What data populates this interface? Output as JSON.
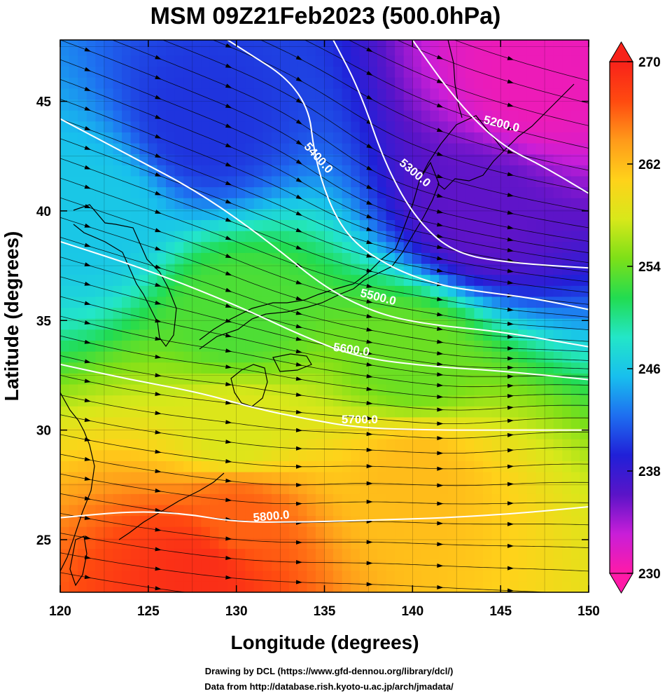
{
  "title": "MSM 09Z21Feb2023 (500.0hPa)",
  "x_axis": {
    "label": "Longitude (degrees)",
    "range": [
      120,
      150
    ],
    "ticks": [
      "120",
      "125",
      "130",
      "135",
      "140",
      "145",
      "150"
    ]
  },
  "y_axis": {
    "label": "Latitude  (degrees)",
    "range": [
      22.6,
      47.8
    ],
    "ticks": [
      "25",
      "30",
      "35",
      "40",
      "45"
    ]
  },
  "colorbar": {
    "range": [
      230,
      270
    ],
    "ticks": [
      "230",
      "238",
      "246",
      "254",
      "262",
      "270"
    ],
    "colors": [
      "#ff1aa8",
      "#c81ed8",
      "#5a14c8",
      "#2020d8",
      "#1e6ef0",
      "#18bfee",
      "#23e6c8",
      "#22dc50",
      "#7de018",
      "#d8e81a",
      "#ffd21a",
      "#ff9a1a",
      "#ff4a10",
      "#f8221a"
    ]
  },
  "contours": {
    "labels": [
      "5200.0",
      "5300.0",
      "5400.0",
      "5500.0",
      "5600.0",
      "5700.0",
      "5800.0"
    ],
    "color": "#ffffff"
  },
  "credits": {
    "line1": "Drawing by DCL (https://www.gfd-dennou.org/library/dcl/)",
    "line2": "Data from http://database.rish.kyoto-u.ac.jp/arch/jmadata/"
  },
  "chart_data": {
    "type": "heatmap",
    "title": "MSM 09Z21Feb2023 (500.0hPa)",
    "xlabel": "Longitude (degrees)",
    "ylabel": "Latitude  (degrees)",
    "xlim": [
      120,
      150
    ],
    "ylim": [
      22.6,
      47.8
    ],
    "color_scale": {
      "min": 230,
      "max": 270,
      "ticks": [
        230,
        238,
        246,
        254,
        262,
        270
      ]
    },
    "grid": true,
    "field_samples": [
      {
        "lon": 147,
        "lat": 46,
        "value": 231
      },
      {
        "lon": 144,
        "lat": 40,
        "value": 236
      },
      {
        "lon": 128,
        "lat": 44,
        "value": 240
      },
      {
        "lon": 122,
        "lat": 40,
        "value": 246
      },
      {
        "lon": 130,
        "lat": 35,
        "value": 253
      },
      {
        "lon": 140,
        "lat": 33,
        "value": 254
      },
      {
        "lon": 130,
        "lat": 30,
        "value": 258
      },
      {
        "lon": 140,
        "lat": 28,
        "value": 262
      },
      {
        "lon": 130,
        "lat": 26,
        "value": 266
      },
      {
        "lon": 128,
        "lat": 23.5,
        "value": 269
      }
    ],
    "height_contours": [
      {
        "level": 5200,
        "points": [
          [
            140,
            47.8
          ],
          [
            142.5,
            45
          ],
          [
            145,
            43
          ],
          [
            147.5,
            42
          ],
          [
            150,
            40.8
          ]
        ]
      },
      {
        "level": 5300,
        "points": [
          [
            135.5,
            47.8
          ],
          [
            137,
            45.5
          ],
          [
            138.5,
            42
          ],
          [
            140.3,
            39.5
          ],
          [
            142.5,
            38
          ],
          [
            146,
            37.6
          ],
          [
            150,
            37.4
          ]
        ]
      },
      {
        "level": 5400,
        "points": [
          [
            129.5,
            47.8
          ],
          [
            134,
            45.5
          ],
          [
            134.5,
            42
          ],
          [
            136,
            39
          ],
          [
            138.5,
            37.5
          ],
          [
            141.5,
            36.6
          ],
          [
            144,
            36.3
          ],
          [
            147,
            36
          ],
          [
            150,
            35.5
          ]
        ]
      },
      {
        "level": 5500,
        "points": [
          [
            120,
            44.2
          ],
          [
            124,
            42.5
          ],
          [
            128,
            40.8
          ],
          [
            132,
            38.5
          ],
          [
            135,
            36.5
          ],
          [
            138,
            35.3
          ],
          [
            141,
            34.8
          ],
          [
            145,
            34.5
          ],
          [
            150,
            33.8
          ]
        ]
      },
      {
        "level": 5600,
        "points": [
          [
            120,
            38.6
          ],
          [
            125,
            37.3
          ],
          [
            130,
            35.7
          ],
          [
            134,
            34.2
          ],
          [
            137,
            33.3
          ],
          [
            141,
            32.9
          ],
          [
            145,
            32.7
          ],
          [
            150,
            32.3
          ]
        ]
      },
      {
        "level": 5700,
        "points": [
          [
            120,
            33
          ],
          [
            124,
            32.3
          ],
          [
            128,
            31.7
          ],
          [
            131,
            31
          ],
          [
            134,
            30.5
          ],
          [
            137,
            30.1
          ],
          [
            141,
            30
          ],
          [
            145,
            30
          ],
          [
            150,
            30
          ]
        ]
      },
      {
        "level": 5800,
        "points": [
          [
            120,
            26
          ],
          [
            124,
            26.3
          ],
          [
            127,
            26.2
          ],
          [
            130,
            25.8
          ],
          [
            134,
            25.8
          ],
          [
            138,
            25.9
          ],
          [
            142,
            26
          ],
          [
            146,
            26.2
          ],
          [
            150,
            26.5
          ]
        ]
      }
    ],
    "wind": {
      "type": "streamlines",
      "direction": "westerly",
      "samples": [
        {
          "lon": 125,
          "lat": 45,
          "dir_deg": -18
        },
        {
          "lon": 135,
          "lat": 43,
          "dir_deg": -30
        },
        {
          "lon": 130,
          "lat": 38,
          "dir_deg": -18
        },
        {
          "lon": 140,
          "lat": 36,
          "dir_deg": -8
        },
        {
          "lon": 128,
          "lat": 32,
          "dir_deg": -5
        },
        {
          "lon": 135,
          "lat": 27,
          "dir_deg": 2
        },
        {
          "lon": 145,
          "lat": 30,
          "dir_deg": 4
        }
      ]
    }
  }
}
